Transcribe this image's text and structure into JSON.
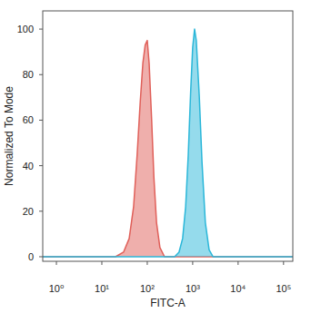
{
  "chart_data": {
    "type": "area",
    "x_label": "FITC-A",
    "y_label": "Normalized To Mode",
    "log": "x",
    "xlim": [
      0.5,
      160000
    ],
    "xticks": [
      {
        "value": 1,
        "label": "10⁰"
      },
      {
        "value": 10,
        "label": "10¹"
      },
      {
        "value": 100,
        "label": "10²"
      },
      {
        "value": 1000,
        "label": "10³"
      },
      {
        "value": 10000,
        "label": "10⁴"
      },
      {
        "value": 100000,
        "label": "10⁵"
      }
    ],
    "ylim": [
      -2,
      108
    ],
    "yticks": [
      0,
      20,
      40,
      60,
      80,
      100
    ],
    "grid": false,
    "series": [
      {
        "color": "#e0605a",
        "x": [
          0.5,
          20,
          30,
          40,
          50,
          60,
          70,
          80,
          90,
          100,
          110,
          125,
          140,
          160,
          190,
          240,
          160000
        ],
        "values": [
          0,
          0,
          2,
          8,
          22,
          45,
          68,
          85,
          93,
          95,
          85,
          60,
          35,
          15,
          4,
          0,
          0
        ]
      },
      {
        "color": "#2bb7d9",
        "x": [
          0.5,
          400,
          500,
          600,
          700,
          800,
          900,
          1000,
          1100,
          1200,
          1400,
          1600,
          1900,
          2300,
          2800,
          160000
        ],
        "values": [
          0,
          0,
          2,
          8,
          22,
          45,
          72,
          92,
          100,
          95,
          70,
          42,
          15,
          3,
          0,
          0
        ]
      }
    ]
  }
}
